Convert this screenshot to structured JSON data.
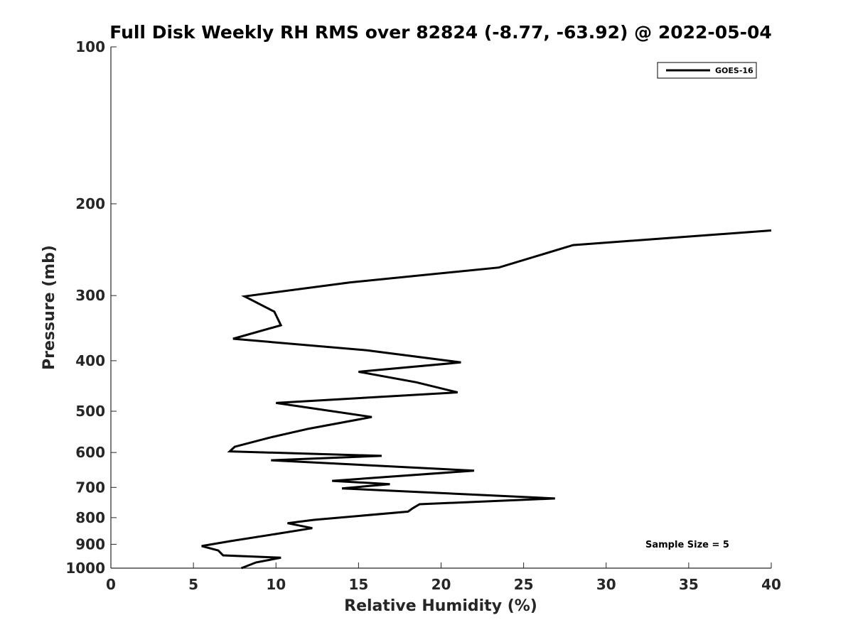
{
  "chart_data": {
    "type": "line",
    "title": "Full Disk Weekly RH RMS over 82824 (-8.77, -63.92) @ 2022-05-04",
    "xlabel": "Relative Humidity (%)",
    "ylabel": "Pressure (mb)",
    "xlim": [
      0,
      40
    ],
    "ylim": [
      100,
      1000
    ],
    "y_scale": "log",
    "y_reversed": true,
    "x_ticks": [
      0,
      5,
      10,
      15,
      20,
      25,
      30,
      35,
      40
    ],
    "y_ticks": [
      100,
      200,
      300,
      400,
      500,
      600,
      700,
      800,
      900,
      1000
    ],
    "grid": false,
    "legend_position": "top-right",
    "annotation": "Sample Size = 5",
    "line_color": "#000000",
    "series": [
      {
        "name": "GOES-16",
        "points": [
          [
            40.0,
            225
          ],
          [
            28.0,
            240
          ],
          [
            23.5,
            265
          ],
          [
            14.5,
            283
          ],
          [
            8.1,
            301
          ],
          [
            9.9,
            322
          ],
          [
            10.3,
            342
          ],
          [
            7.4,
            363
          ],
          [
            15.5,
            382
          ],
          [
            21.2,
            403
          ],
          [
            15.0,
            420
          ],
          [
            18.5,
            440
          ],
          [
            21.0,
            460
          ],
          [
            10.0,
            482
          ],
          [
            15.8,
            513
          ],
          [
            12.0,
            540
          ],
          [
            9.6,
            562
          ],
          [
            7.5,
            585
          ],
          [
            7.2,
            597
          ],
          [
            16.4,
            609
          ],
          [
            9.7,
            621
          ],
          [
            22.0,
            650
          ],
          [
            13.4,
            680
          ],
          [
            16.9,
            690
          ],
          [
            14.0,
            703
          ],
          [
            26.9,
            735
          ],
          [
            18.7,
            754
          ],
          [
            18.3,
            767
          ],
          [
            18.0,
            779
          ],
          [
            12.3,
            808
          ],
          [
            10.7,
            820
          ],
          [
            12.2,
            838
          ],
          [
            10.0,
            860
          ],
          [
            7.2,
            888
          ],
          [
            5.5,
            907
          ],
          [
            6.5,
            925
          ],
          [
            6.8,
            945
          ],
          [
            10.3,
            955
          ],
          [
            8.8,
            975
          ],
          [
            7.9,
            1000
          ]
        ]
      }
    ]
  }
}
